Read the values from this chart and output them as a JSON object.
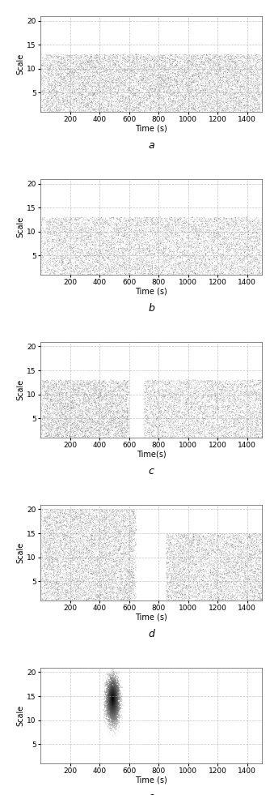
{
  "n_subplots": 5,
  "subplot_labels": [
    "a",
    "b",
    "c",
    "d",
    "e"
  ],
  "xlim": [
    0,
    1500
  ],
  "ylim": [
    1,
    21
  ],
  "xticks": [
    200,
    400,
    600,
    800,
    1000,
    1200,
    1400
  ],
  "yticks": [
    5,
    10,
    15,
    20
  ],
  "xlabel": "Time (s)",
  "ylabel": "Scale",
  "bg_color": "#ffffff",
  "grid_color": "#aaaaaa",
  "figsize": [
    3.34,
    9.81
  ],
  "dpi": 100
}
